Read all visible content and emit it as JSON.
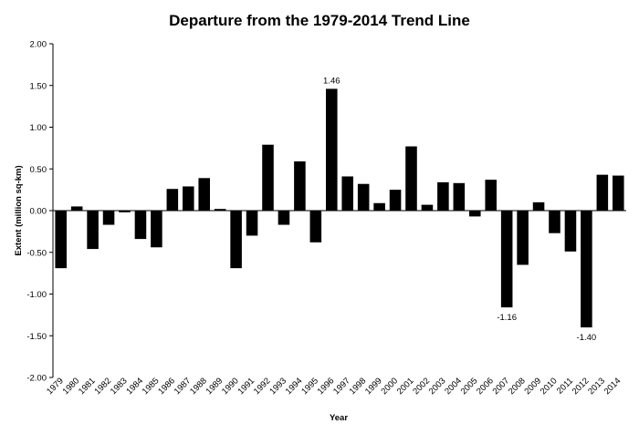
{
  "chart_data": {
    "type": "bar",
    "title": "Departure from the 1979-2014 Trend Line",
    "xlabel": "Year",
    "ylabel": "Extent (million sq-km)",
    "ylim": [
      -2.0,
      2.0
    ],
    "yticks": [
      "2.00",
      "1.50",
      "1.00",
      "0.50",
      "0.00",
      "-0.50",
      "-1.00",
      "-1.50",
      "-2.00"
    ],
    "ytick_values": [
      2.0,
      1.5,
      1.0,
      0.5,
      0.0,
      -0.5,
      -1.0,
      -1.5,
      -2.0
    ],
    "grid": false,
    "legend": "none",
    "bar_color": "#000000",
    "categories": [
      "1979",
      "1980",
      "1981",
      "1982",
      "1983",
      "1984",
      "1985",
      "1986",
      "1987",
      "1988",
      "1989",
      "1990",
      "1991",
      "1992",
      "1993",
      "1994",
      "1995",
      "1996",
      "1997",
      "1998",
      "1999",
      "2000",
      "2001",
      "2002",
      "2003",
      "2004",
      "2005",
      "2006",
      "2007",
      "2008",
      "2009",
      "2010",
      "2011",
      "2012",
      "2013",
      "2014"
    ],
    "values": [
      -0.69,
      0.05,
      -0.46,
      -0.17,
      -0.02,
      -0.34,
      -0.44,
      0.26,
      0.29,
      0.39,
      0.02,
      -0.69,
      -0.3,
      0.79,
      -0.17,
      0.59,
      -0.38,
      1.46,
      0.41,
      0.32,
      0.09,
      0.25,
      0.77,
      0.07,
      0.34,
      0.33,
      -0.07,
      0.37,
      -1.16,
      -0.65,
      0.1,
      -0.27,
      -0.49,
      -1.4,
      0.43,
      0.42
    ],
    "data_labels": [
      {
        "category": "1996",
        "text": "1.46"
      },
      {
        "category": "2007",
        "text": "-1.16"
      },
      {
        "category": "2012",
        "text": "-1.40"
      }
    ]
  }
}
